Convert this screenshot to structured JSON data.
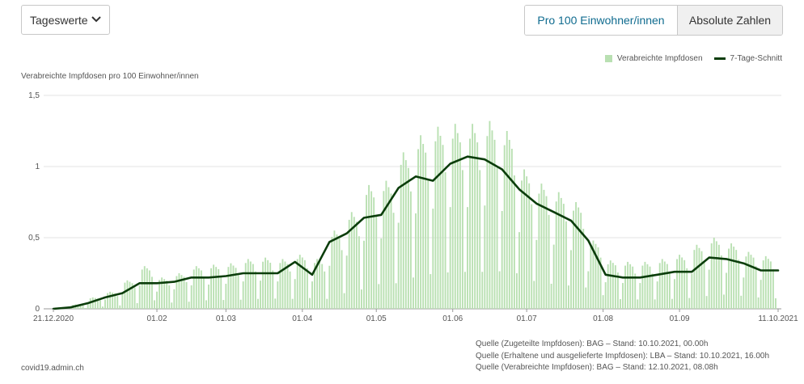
{
  "header": {
    "select_value": "Tageswerte",
    "toggle": {
      "active_label": "Pro 100 Einwohner/innen",
      "inactive_label": "Absolute Zahlen"
    }
  },
  "footer": {
    "site": "covid19.admin.ch",
    "sources": [
      "Quelle (Zugeteilte Impfdosen): BAG – Stand: 10.10.2021, 00.00h",
      "Quelle (Erhaltene und ausgelieferte Impfdosen): LBA – Stand: 10.10.2021, 16.00h",
      "Quelle (Verabreichte Impfdosen): BAG – Stand: 12.10.2021, 08.08h"
    ]
  },
  "colors": {
    "bars": "#b9e0b2",
    "line": "#0b3d0b",
    "accent": "#0f6b8f"
  },
  "icons": {
    "select": "chevron-down-icon"
  },
  "chart_data": {
    "type": "bar",
    "ylabel": "Verabreichte Impfdosen pro 100 Einwohner/innen",
    "ylim": [
      0,
      1.5
    ],
    "yticks": [
      0,
      0.5,
      1,
      1.5
    ],
    "ytick_labels": [
      "0",
      "0,5",
      "1",
      "1,5"
    ],
    "x_start": "2020-12-21",
    "x_end": "2021-10-11",
    "xtick_labels": [
      {
        "date": "2020-12-21",
        "label": "21.12.2020"
      },
      {
        "date": "2021-02-01",
        "label": "01.02"
      },
      {
        "date": "2021-03-01",
        "label": "01.03"
      },
      {
        "date": "2021-04-01",
        "label": "01.04"
      },
      {
        "date": "2021-05-01",
        "label": "01.05"
      },
      {
        "date": "2021-06-01",
        "label": "01.06"
      },
      {
        "date": "2021-07-01",
        "label": "01.07"
      },
      {
        "date": "2021-08-01",
        "label": "01.08"
      },
      {
        "date": "2021-09-01",
        "label": "01.09"
      },
      {
        "date": "2021-10-11",
        "label": "11.10.2021"
      }
    ],
    "grid": true,
    "legend_position": "top-right",
    "series": [
      {
        "name": "Verabreichte Impfdosen",
        "type": "bar",
        "weekly_peaks": [
          {
            "week_start": "2020-12-21",
            "value": 0.01
          },
          {
            "week_start": "2020-12-28",
            "value": 0.03
          },
          {
            "week_start": "2021-01-04",
            "value": 0.08
          },
          {
            "week_start": "2021-01-11",
            "value": 0.12
          },
          {
            "week_start": "2021-01-18",
            "value": 0.2
          },
          {
            "week_start": "2021-01-25",
            "value": 0.3
          },
          {
            "week_start": "2021-02-01",
            "value": 0.22
          },
          {
            "week_start": "2021-02-08",
            "value": 0.25
          },
          {
            "week_start": "2021-02-15",
            "value": 0.3
          },
          {
            "week_start": "2021-02-22",
            "value": 0.31
          },
          {
            "week_start": "2021-03-01",
            "value": 0.32
          },
          {
            "week_start": "2021-03-08",
            "value": 0.35
          },
          {
            "week_start": "2021-03-15",
            "value": 0.36
          },
          {
            "week_start": "2021-03-22",
            "value": 0.35
          },
          {
            "week_start": "2021-03-29",
            "value": 0.38
          },
          {
            "week_start": "2021-04-05",
            "value": 0.35
          },
          {
            "week_start": "2021-04-12",
            "value": 0.55
          },
          {
            "week_start": "2021-04-19",
            "value": 0.68
          },
          {
            "week_start": "2021-04-26",
            "value": 0.87
          },
          {
            "week_start": "2021-05-03",
            "value": 0.9
          },
          {
            "week_start": "2021-05-10",
            "value": 1.1
          },
          {
            "week_start": "2021-05-17",
            "value": 1.22
          },
          {
            "week_start": "2021-05-24",
            "value": 1.28
          },
          {
            "week_start": "2021-05-31",
            "value": 1.3
          },
          {
            "week_start": "2021-06-07",
            "value": 1.3
          },
          {
            "week_start": "2021-06-14",
            "value": 1.32
          },
          {
            "week_start": "2021-06-21",
            "value": 1.25
          },
          {
            "week_start": "2021-06-28",
            "value": 0.98
          },
          {
            "week_start": "2021-07-05",
            "value": 0.88
          },
          {
            "week_start": "2021-07-12",
            "value": 0.82
          },
          {
            "week_start": "2021-07-19",
            "value": 0.75
          },
          {
            "week_start": "2021-07-26",
            "value": 0.48
          },
          {
            "week_start": "2021-08-02",
            "value": 0.34
          },
          {
            "week_start": "2021-08-09",
            "value": 0.33
          },
          {
            "week_start": "2021-08-16",
            "value": 0.33
          },
          {
            "week_start": "2021-08-23",
            "value": 0.35
          },
          {
            "week_start": "2021-08-30",
            "value": 0.38
          },
          {
            "week_start": "2021-09-06",
            "value": 0.45
          },
          {
            "week_start": "2021-09-13",
            "value": 0.5
          },
          {
            "week_start": "2021-09-20",
            "value": 0.46
          },
          {
            "week_start": "2021-09-27",
            "value": 0.4
          },
          {
            "week_start": "2021-10-04",
            "value": 0.37
          }
        ]
      },
      {
        "name": "7-Tage-Schnitt",
        "type": "line",
        "points": [
          [
            "2020-12-21",
            0
          ],
          [
            "2020-12-28",
            0.01
          ],
          [
            "2021-01-04",
            0.04
          ],
          [
            "2021-01-11",
            0.08
          ],
          [
            "2021-01-18",
            0.11
          ],
          [
            "2021-01-25",
            0.18
          ],
          [
            "2021-02-01",
            0.18
          ],
          [
            "2021-02-08",
            0.19
          ],
          [
            "2021-02-15",
            0.22
          ],
          [
            "2021-02-22",
            0.22
          ],
          [
            "2021-03-01",
            0.23
          ],
          [
            "2021-03-08",
            0.25
          ],
          [
            "2021-03-15",
            0.25
          ],
          [
            "2021-03-22",
            0.25
          ],
          [
            "2021-03-29",
            0.33
          ],
          [
            "2021-04-05",
            0.24
          ],
          [
            "2021-04-12",
            0.47
          ],
          [
            "2021-04-19",
            0.53
          ],
          [
            "2021-04-26",
            0.64
          ],
          [
            "2021-05-03",
            0.66
          ],
          [
            "2021-05-10",
            0.85
          ],
          [
            "2021-05-17",
            0.93
          ],
          [
            "2021-05-24",
            0.9
          ],
          [
            "2021-05-31",
            1.02
          ],
          [
            "2021-06-07",
            1.07
          ],
          [
            "2021-06-14",
            1.05
          ],
          [
            "2021-06-21",
            0.98
          ],
          [
            "2021-06-28",
            0.84
          ],
          [
            "2021-07-05",
            0.74
          ],
          [
            "2021-07-12",
            0.68
          ],
          [
            "2021-07-19",
            0.62
          ],
          [
            "2021-07-26",
            0.48
          ],
          [
            "2021-08-02",
            0.24
          ],
          [
            "2021-08-09",
            0.22
          ],
          [
            "2021-08-16",
            0.22
          ],
          [
            "2021-08-23",
            0.24
          ],
          [
            "2021-08-30",
            0.26
          ],
          [
            "2021-09-06",
            0.26
          ],
          [
            "2021-09-13",
            0.36
          ],
          [
            "2021-09-20",
            0.35
          ],
          [
            "2021-09-27",
            0.32
          ],
          [
            "2021-10-04",
            0.27
          ],
          [
            "2021-10-11",
            0.27
          ]
        ]
      }
    ]
  }
}
